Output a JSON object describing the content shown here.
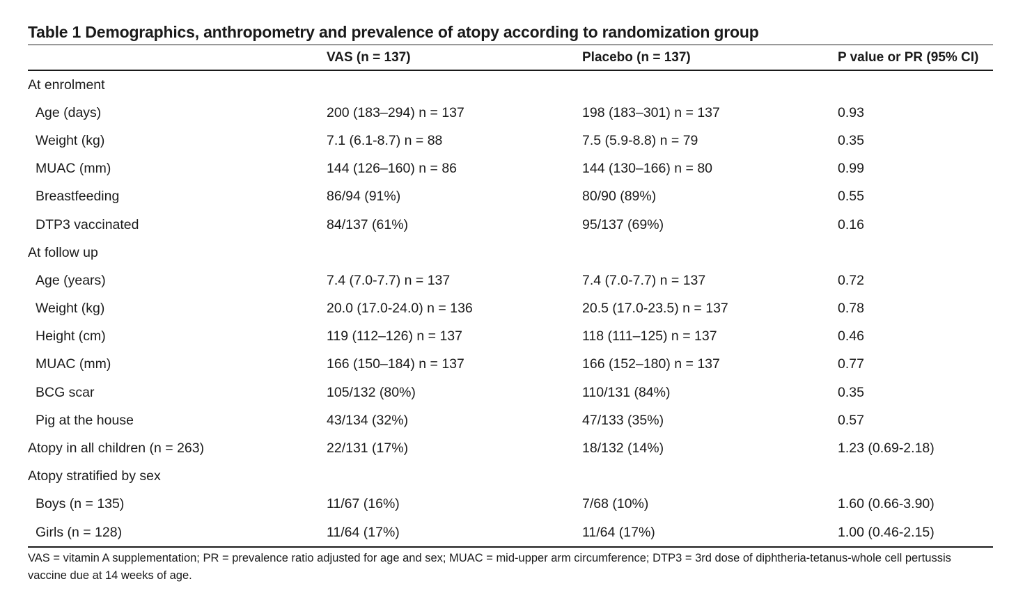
{
  "title": "Table 1 Demographics, anthropometry and prevalence of atopy according to randomization group",
  "columns": [
    "",
    "VAS (n = 137)",
    "Placebo (n = 137)",
    "P value or PR (95% CI)"
  ],
  "rows": [
    {
      "label": "At enrolment",
      "indent": false,
      "vas": "",
      "placebo": "",
      "p": ""
    },
    {
      "label": "Age (days)",
      "indent": true,
      "vas": "200 (183–294) n = 137",
      "placebo": "198 (183–301) n = 137",
      "p": "0.93"
    },
    {
      "label": "Weight (kg)",
      "indent": true,
      "vas": "7.1 (6.1-8.7) n = 88",
      "placebo": "7.5 (5.9-8.8) n = 79",
      "p": "0.35"
    },
    {
      "label": "MUAC (mm)",
      "indent": true,
      "vas": "144 (126–160) n = 86",
      "placebo": "144 (130–166) n = 80",
      "p": "0.99"
    },
    {
      "label": "Breastfeeding",
      "indent": true,
      "vas": "86/94 (91%)",
      "placebo": "80/90 (89%)",
      "p": "0.55"
    },
    {
      "label": "DTP3 vaccinated",
      "indent": true,
      "vas": "84/137 (61%)",
      "placebo": "95/137 (69%)",
      "p": "0.16"
    },
    {
      "label": "At follow up",
      "indent": false,
      "vas": "",
      "placebo": "",
      "p": ""
    },
    {
      "label": "Age (years)",
      "indent": true,
      "vas": "7.4 (7.0-7.7) n = 137",
      "placebo": "7.4 (7.0-7.7) n = 137",
      "p": "0.72"
    },
    {
      "label": "Weight (kg)",
      "indent": true,
      "vas": "20.0 (17.0-24.0) n = 136",
      "placebo": "20.5 (17.0-23.5) n = 137",
      "p": "0.78"
    },
    {
      "label": "Height (cm)",
      "indent": true,
      "vas": "119 (112–126) n = 137",
      "placebo": "118 (111–125) n = 137",
      "p": "0.46"
    },
    {
      "label": "MUAC (mm)",
      "indent": true,
      "vas": "166 (150–184) n = 137",
      "placebo": "166 (152–180) n = 137",
      "p": "0.77"
    },
    {
      "label": "BCG scar",
      "indent": true,
      "vas": "105/132 (80%)",
      "placebo": "110/131 (84%)",
      "p": "0.35"
    },
    {
      "label": "Pig at the house",
      "indent": true,
      "vas": "43/134 (32%)",
      "placebo": "47/133 (35%)",
      "p": "0.57"
    },
    {
      "label": "Atopy in all children (n = 263)",
      "indent": false,
      "vas": "22/131 (17%)",
      "placebo": "18/132 (14%)",
      "p": "1.23 (0.69-2.18)"
    },
    {
      "label": "Atopy stratified by sex",
      "indent": false,
      "vas": "",
      "placebo": "",
      "p": ""
    },
    {
      "label": "Boys (n = 135)",
      "indent": true,
      "vas": "11/67 (16%)",
      "placebo": "7/68 (10%)",
      "p": "1.60 (0.66-3.90)"
    },
    {
      "label": "Girls (n = 128)",
      "indent": true,
      "vas": "11/64 (17%)",
      "placebo": "11/64 (17%)",
      "p": "1.00 (0.46-2.15)"
    }
  ],
  "footnote": "VAS = vitamin A supplementation; PR = prevalence ratio adjusted for age and sex; MUAC = mid-upper arm circumference; DTP3 = 3rd dose of diphtheria-tetanus-whole cell pertussis vaccine due at 14 weeks of age."
}
